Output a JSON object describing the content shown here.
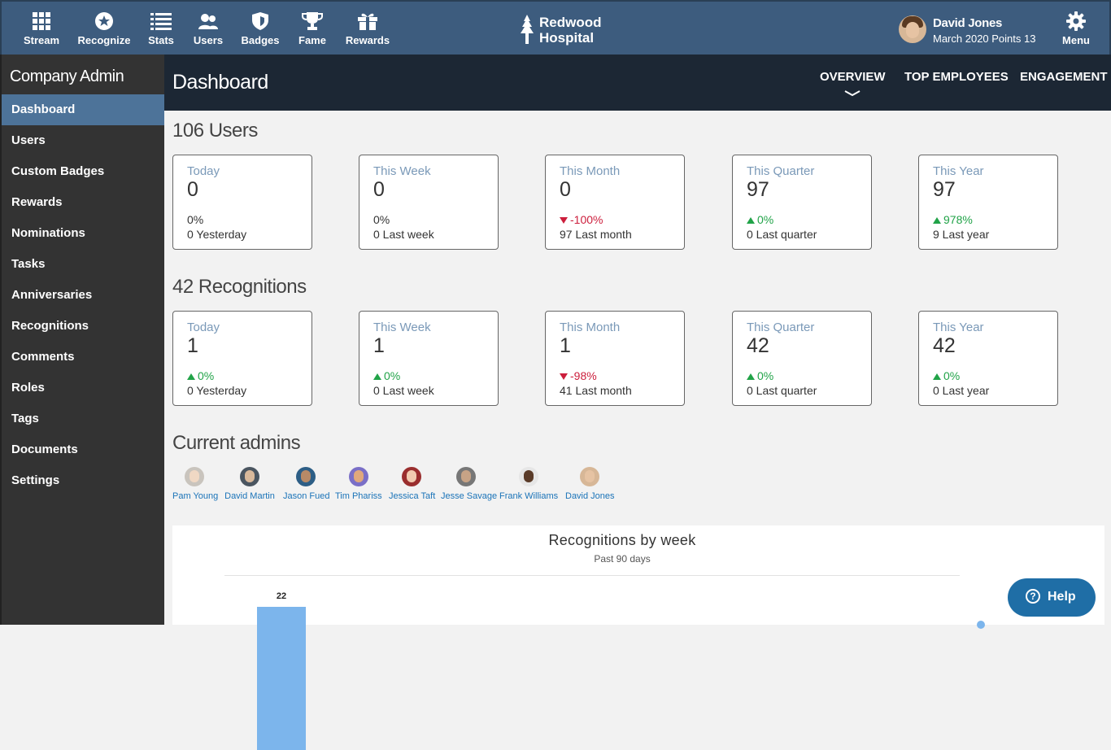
{
  "nav": {
    "items": [
      {
        "label": "Stream",
        "icon": "grid-icon"
      },
      {
        "label": "Recognize",
        "icon": "star-badge-icon"
      },
      {
        "label": "Stats",
        "icon": "list-icon"
      },
      {
        "label": "Users",
        "icon": "users-icon"
      },
      {
        "label": "Badges",
        "icon": "shield-icon"
      },
      {
        "label": "Fame",
        "icon": "trophy-icon"
      },
      {
        "label": "Rewards",
        "icon": "gift-icon"
      }
    ],
    "logo": {
      "line1": "Redwood",
      "line2": "Hospital",
      "icon": "tree-icon"
    },
    "user": {
      "name": "David Jones",
      "points": "March 2020 Points 13"
    },
    "menu_label": "Menu"
  },
  "sidebar": {
    "title": "Company Admin",
    "items": [
      "Dashboard",
      "Users",
      "Custom Badges",
      "Rewards",
      "Nominations",
      "Tasks",
      "Anniversaries",
      "Recognitions",
      "Comments",
      "Roles",
      "Tags",
      "Documents",
      "Settings"
    ],
    "active": "Dashboard"
  },
  "header": {
    "title": "Dashboard",
    "tabs": [
      "OVERVIEW",
      "TOP EMPLOYEES",
      "ENGAGEMENT"
    ],
    "active_tab": "OVERVIEW"
  },
  "users": {
    "title": "106 Users",
    "cards": [
      {
        "period": "Today",
        "value": "0",
        "change": "0%",
        "trend": "none",
        "prev": "0 Yesterday"
      },
      {
        "period": "This Week",
        "value": "0",
        "change": "0%",
        "trend": "none",
        "prev": "0 Last week"
      },
      {
        "period": "This Month",
        "value": "0",
        "change": "-100%",
        "trend": "down",
        "prev": "97 Last month"
      },
      {
        "period": "This Quarter",
        "value": "97",
        "change": "0%",
        "trend": "up",
        "prev": "0 Last quarter"
      },
      {
        "period": "This Year",
        "value": "97",
        "change": "978%",
        "trend": "up",
        "prev": "9 Last year"
      }
    ]
  },
  "recognitions": {
    "title": "42 Recognitions",
    "cards": [
      {
        "period": "Today",
        "value": "1",
        "change": "0%",
        "trend": "up",
        "prev": "0 Yesterday"
      },
      {
        "period": "This Week",
        "value": "1",
        "change": "0%",
        "trend": "up",
        "prev": "0 Last week"
      },
      {
        "period": "This Month",
        "value": "1",
        "change": "-98%",
        "trend": "down",
        "prev": "41 Last month"
      },
      {
        "period": "This Quarter",
        "value": "42",
        "change": "0%",
        "trend": "up",
        "prev": "0 Last quarter"
      },
      {
        "period": "This Year",
        "value": "42",
        "change": "0%",
        "trend": "up",
        "prev": "0 Last year"
      }
    ]
  },
  "admins": {
    "title": "Current admins",
    "people": [
      "Pam Young",
      "David Martin",
      "Jason Fued",
      "Tim Phariss",
      "Jessica Taft",
      "Jesse Savage",
      "Frank Williams",
      "David Jones"
    ]
  },
  "chart": {
    "title": "Recognitions by week",
    "subtitle": "Past 90 days",
    "bar_label": "22"
  },
  "chart_data": {
    "type": "bar",
    "title": "Recognitions by week",
    "subtitle": "Past 90 days",
    "categories": [
      ""
    ],
    "values": [
      22
    ]
  },
  "help": {
    "label": "Help"
  }
}
